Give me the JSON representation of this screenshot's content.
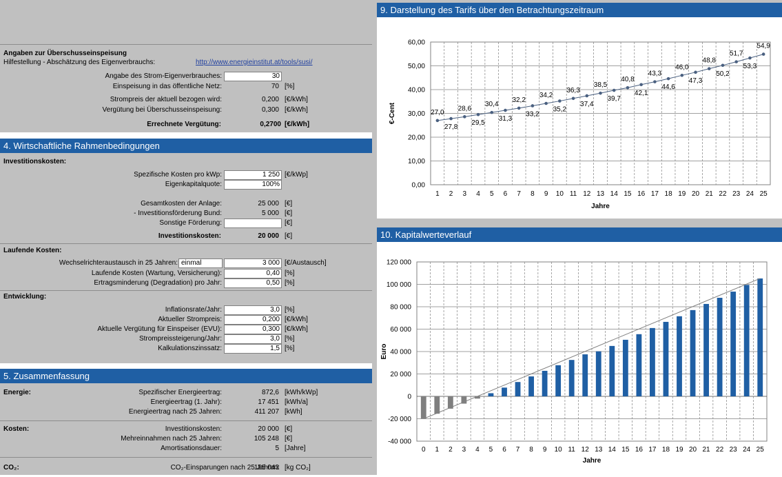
{
  "surplus": {
    "title": "Angaben zur Überschusseinspeisung",
    "help_label": "Hilfestellung - Abschätzung des Eigenverbrauchs:",
    "help_link": "http://www.energieinstitut.at/tools/susi/",
    "rows": [
      {
        "label": "Angabe des Strom-Eigenverbrauches:",
        "value": "30",
        "unit": "",
        "input": true
      },
      {
        "label": "Einspeisung in das öffentliche Netz:",
        "value": "70",
        "unit": "[%]",
        "input": false
      },
      {
        "label": "Strompreis der aktuell bezogen wird:",
        "value": "0,200",
        "unit": "[€/kWh]",
        "input": false
      },
      {
        "label": "Vergütung bei Überschusseinspeisung:",
        "value": "0,300",
        "unit": "[€/kWh]",
        "input": false
      }
    ],
    "result_label": "Errechnete Vergütung:",
    "result_value": "0,2700",
    "result_unit": "[€/kWh]"
  },
  "section4": {
    "title": "4. Wirtschaftliche Rahmenbedingungen",
    "invest_title": "Investitionskosten:",
    "invest_rows": [
      {
        "label": "Spezifische Kosten pro kWp:",
        "value": "1 250",
        "unit": "[€/kWp]",
        "input": true
      },
      {
        "label": "Eigenkapitalquote:",
        "value": "100%",
        "unit": "",
        "input": true
      }
    ],
    "total_rows": [
      {
        "label": "Gesamtkosten der Anlage:",
        "value": "25 000",
        "unit": "[€]",
        "input": false
      },
      {
        "label": "- Investitionsförderung Bund:",
        "value": "5 000",
        "unit": "[€]",
        "input": false
      },
      {
        "label": "Sonstige Förderung:",
        "value": "",
        "unit": "[€]",
        "input": true
      }
    ],
    "invest_total_label": "Investitionskosten:",
    "invest_total_value": "20 000",
    "invest_total_unit": "[€]",
    "running_title": "Laufende Kosten:",
    "inverter_label": "Wechselrichteraustausch in 25 Jahren:",
    "inverter_select": "einmal",
    "inverter_value": "3 000",
    "inverter_unit": "[€/Austausch]",
    "running_rows": [
      {
        "label": "Laufende Kosten (Wartung, Versicherung):",
        "value": "0,40",
        "unit": "[%]"
      },
      {
        "label": "Ertragsminderung (Degradation) pro Jahr:",
        "value": "0,50",
        "unit": "[%]"
      }
    ],
    "dev_title": "Entwicklung:",
    "dev_rows": [
      {
        "label": "Inflationsrate/Jahr:",
        "value": "3,0",
        "unit": "[%]"
      },
      {
        "label": "Aktueller Strompreis:",
        "value": "0,200",
        "unit": "[€/kWh]"
      },
      {
        "label": "Aktuelle Vergütung für Einspeiser (EVU):",
        "value": "0,300",
        "unit": "[€/kWh]"
      },
      {
        "label": "Strompreissteigerung/Jahr:",
        "value": "3,0",
        "unit": "[%]"
      },
      {
        "label": "Kalkulationszinssatz:",
        "value": "1,5",
        "unit": "[%]"
      }
    ]
  },
  "section5": {
    "title": "5. Zusammenfassung",
    "energy_title": "Energie:",
    "energy_rows": [
      {
        "label": "Spezifischer Energieertrag:",
        "value": "872,6",
        "unit": "[kWh/kWp]"
      },
      {
        "label": "Energieertrag (1. Jahr):",
        "value": "17 451",
        "unit": "[kWh/a]"
      },
      {
        "label": "Energieertrag nach 25 Jahren:",
        "value": "411 207",
        "unit": "[kWh]"
      }
    ],
    "cost_title": "Kosten:",
    "cost_rows": [
      {
        "label": "Investitionskosten:",
        "value": "20 000",
        "unit": "[€]"
      },
      {
        "label": "Mehreinnahmen nach 25 Jahren:",
        "value": "105 248",
        "unit": "[€]"
      },
      {
        "label": "Amortisationsdauer:",
        "value": "5",
        "unit": "[Jahre]"
      }
    ],
    "co2_title": "CO₂:",
    "co2_label": "CO₂-Einsparungen nach 25 Jahren:",
    "co2_value": "185 043",
    "co2_unit": "[kg CO₂]"
  },
  "chart9_header": "9. Darstellung des Tarifs über den Betrachtungszeitraum",
  "chart10_header": "10. Kapitalwerteverlauf",
  "colors": {
    "header": "#1f5fa4",
    "panel": "#c0c0c0",
    "bar_positive": "#1f5fa4",
    "bar_negative": "#7f7f7f",
    "line": "#4a6080"
  },
  "chart_data": [
    {
      "type": "line",
      "xlabel": "Jahre",
      "ylabel": "€-Cent",
      "x": [
        1,
        2,
        3,
        4,
        5,
        6,
        7,
        8,
        9,
        10,
        11,
        12,
        13,
        14,
        15,
        16,
        17,
        18,
        19,
        20,
        21,
        22,
        23,
        24,
        25
      ],
      "y": [
        27.0,
        27.8,
        28.6,
        29.5,
        30.4,
        31.3,
        32.2,
        33.2,
        34.2,
        35.2,
        36.3,
        37.4,
        38.5,
        39.7,
        40.8,
        42.1,
        43.3,
        44.6,
        46.0,
        47.3,
        48.8,
        50.2,
        51.7,
        53.3,
        54.9
      ],
      "labels": [
        "27,0",
        "27,8",
        "28,6",
        "29,5",
        "30,4",
        "31,3",
        "32,2",
        "33,2",
        "34,2",
        "35,2",
        "36,3",
        "37,4",
        "38,5",
        "39,7",
        "40,8",
        "42,1",
        "43,3",
        "44,6",
        "46,0",
        "47,3",
        "48,8",
        "50,2",
        "51,7",
        "53,3",
        "54,9"
      ],
      "yticks": [
        "0,00",
        "10,00",
        "20,00",
        "30,00",
        "40,00",
        "50,00",
        "60,00"
      ],
      "ylim": [
        0,
        60
      ],
      "grid": true
    },
    {
      "type": "bar",
      "xlabel": "Jahre",
      "ylabel": "Euro",
      "x": [
        0,
        1,
        2,
        3,
        4,
        5,
        6,
        7,
        8,
        9,
        10,
        11,
        12,
        13,
        14,
        15,
        16,
        17,
        18,
        19,
        20,
        21,
        22,
        23,
        24,
        25
      ],
      "values": [
        -20000,
        -15500,
        -11000,
        -6500,
        -2000,
        2800,
        7800,
        12800,
        17800,
        22800,
        27800,
        32500,
        37500,
        40200,
        45000,
        50500,
        55500,
        61000,
        66500,
        71500,
        77000,
        82500,
        88000,
        93500,
        99500,
        105248
      ],
      "trend": [
        -20000,
        105248
      ],
      "yticks": [
        "-40 000",
        "-20 000",
        "0",
        "20 000",
        "40 000",
        "60 000",
        "80 000",
        "100 000",
        "120 000"
      ],
      "ylim": [
        -40000,
        120000
      ],
      "grid": true
    }
  ]
}
